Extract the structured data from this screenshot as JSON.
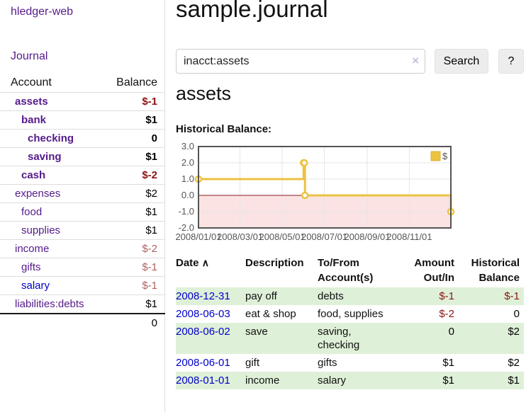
{
  "sidebar": {
    "app_title": "hledger-web",
    "nav": {
      "journal_label": "Journal"
    },
    "accounts_table": {
      "headers": {
        "account": "Account",
        "balance": "Balance"
      },
      "rows": [
        {
          "label": "assets",
          "level": 1,
          "matched": true,
          "balance": "$-1",
          "tone": "negative-strong",
          "link": "purple"
        },
        {
          "label": "bank",
          "level": 2,
          "matched": true,
          "balance": "$1",
          "tone": "normal",
          "link": "purple"
        },
        {
          "label": "checking",
          "level": 3,
          "matched": true,
          "balance": "0",
          "tone": "normal",
          "link": "purple"
        },
        {
          "label": "saving",
          "level": 3,
          "matched": true,
          "balance": "$1",
          "tone": "normal",
          "link": "purple"
        },
        {
          "label": "cash",
          "level": 2,
          "matched": true,
          "balance": "$-2",
          "tone": "negative-strong",
          "link": "purple"
        },
        {
          "label": "expenses",
          "level": 1,
          "matched": false,
          "balance": "$2",
          "tone": "normal",
          "link": "purple"
        },
        {
          "label": "food",
          "level": 2,
          "matched": false,
          "balance": "$1",
          "tone": "normal",
          "link": "purple"
        },
        {
          "label": "supplies",
          "level": 2,
          "matched": false,
          "balance": "$1",
          "tone": "normal",
          "link": "purple"
        },
        {
          "label": "income",
          "level": 1,
          "matched": false,
          "balance": "$-2",
          "tone": "negative-soft",
          "link": "purple"
        },
        {
          "label": "gifts",
          "level": 2,
          "matched": false,
          "balance": "$-1",
          "tone": "negative-soft",
          "link": "purple"
        },
        {
          "label": "salary",
          "level": 2,
          "matched": false,
          "balance": "$-1",
          "tone": "negative-soft",
          "link": "blue"
        },
        {
          "label": "liabilities:debts",
          "level": 1,
          "matched": false,
          "balance": "$1",
          "tone": "normal",
          "link": "purple"
        }
      ],
      "total": "0"
    }
  },
  "header": {
    "title": "sample.journal"
  },
  "search": {
    "value": "inacct:assets",
    "clear_icon": "×",
    "search_button_label": "Search",
    "help_button_label": "?"
  },
  "account_page": {
    "heading": "assets",
    "chart_caption": "Historical Balance:"
  },
  "chart_data": {
    "type": "line",
    "step": true,
    "title": "Historical Balance:",
    "series": [
      {
        "name": "$",
        "color": "#edc240",
        "points": [
          [
            "2008-01-01",
            1
          ],
          [
            "2008-06-01",
            2
          ],
          [
            "2008-06-02",
            2
          ],
          [
            "2008-06-03",
            0
          ],
          [
            "2008-12-31",
            -1
          ]
        ]
      }
    ],
    "xlim": [
      "2008-01-01",
      "2008-12-31"
    ],
    "ylim": [
      -2,
      3
    ],
    "x_ticks": [
      "2008/01/01",
      "2008/03/01",
      "2008/05/01",
      "2008/07/01",
      "2008/09/01",
      "2008/11/01"
    ],
    "y_ticks": [
      3.0,
      2.0,
      1.0,
      0.0,
      -1.0,
      -2.0
    ],
    "grid": true,
    "legend": {
      "label": "$",
      "position": "top-right"
    },
    "negative_region_color": "#fbe3e3",
    "zero_line_color": "#8b1a1a",
    "tick_label_color": "#545454"
  },
  "register": {
    "columns": {
      "date": "Date",
      "description": "Description",
      "accounts": "To/From Account(s)",
      "amount": "Amount Out/In",
      "balance": "Historical Balance"
    },
    "sort_icon": "∧",
    "rows": [
      {
        "date": "2008-12-31",
        "description": "pay off",
        "accounts": "debts",
        "amount": "$-1",
        "amount_tone": "negative-strong",
        "balance": "$-1",
        "balance_tone": "negative-strong"
      },
      {
        "date": "2008-06-03",
        "description": "eat & shop",
        "accounts": "food, supplies",
        "amount": "$-2",
        "amount_tone": "negative-strong",
        "balance": "0",
        "balance_tone": "normal"
      },
      {
        "date": "2008-06-02",
        "description": "save",
        "accounts": "saving, checking",
        "amount": "0",
        "amount_tone": "normal",
        "balance": "$2",
        "balance_tone": "normal"
      },
      {
        "date": "2008-06-01",
        "description": "gift",
        "accounts": "gifts",
        "amount": "$1",
        "amount_tone": "normal",
        "balance": "$2",
        "balance_tone": "normal"
      },
      {
        "date": "2008-01-01",
        "description": "income",
        "accounts": "salary",
        "amount": "$1",
        "amount_tone": "normal",
        "balance": "$1",
        "balance_tone": "normal"
      }
    ]
  },
  "colors": {
    "link_purple": "#551a8b",
    "link_blue": "#0000cc",
    "negative_strong": "#8b1414",
    "negative_soft": "#b06060",
    "row_stripe_green": "#dff0d8",
    "chart_line_gold": "#edc240",
    "chart_negative_pink": "#fbe3e3",
    "chart_zero_line": "#8b1a1a",
    "chart_border": "#545454",
    "button_gray": "#ededed"
  }
}
